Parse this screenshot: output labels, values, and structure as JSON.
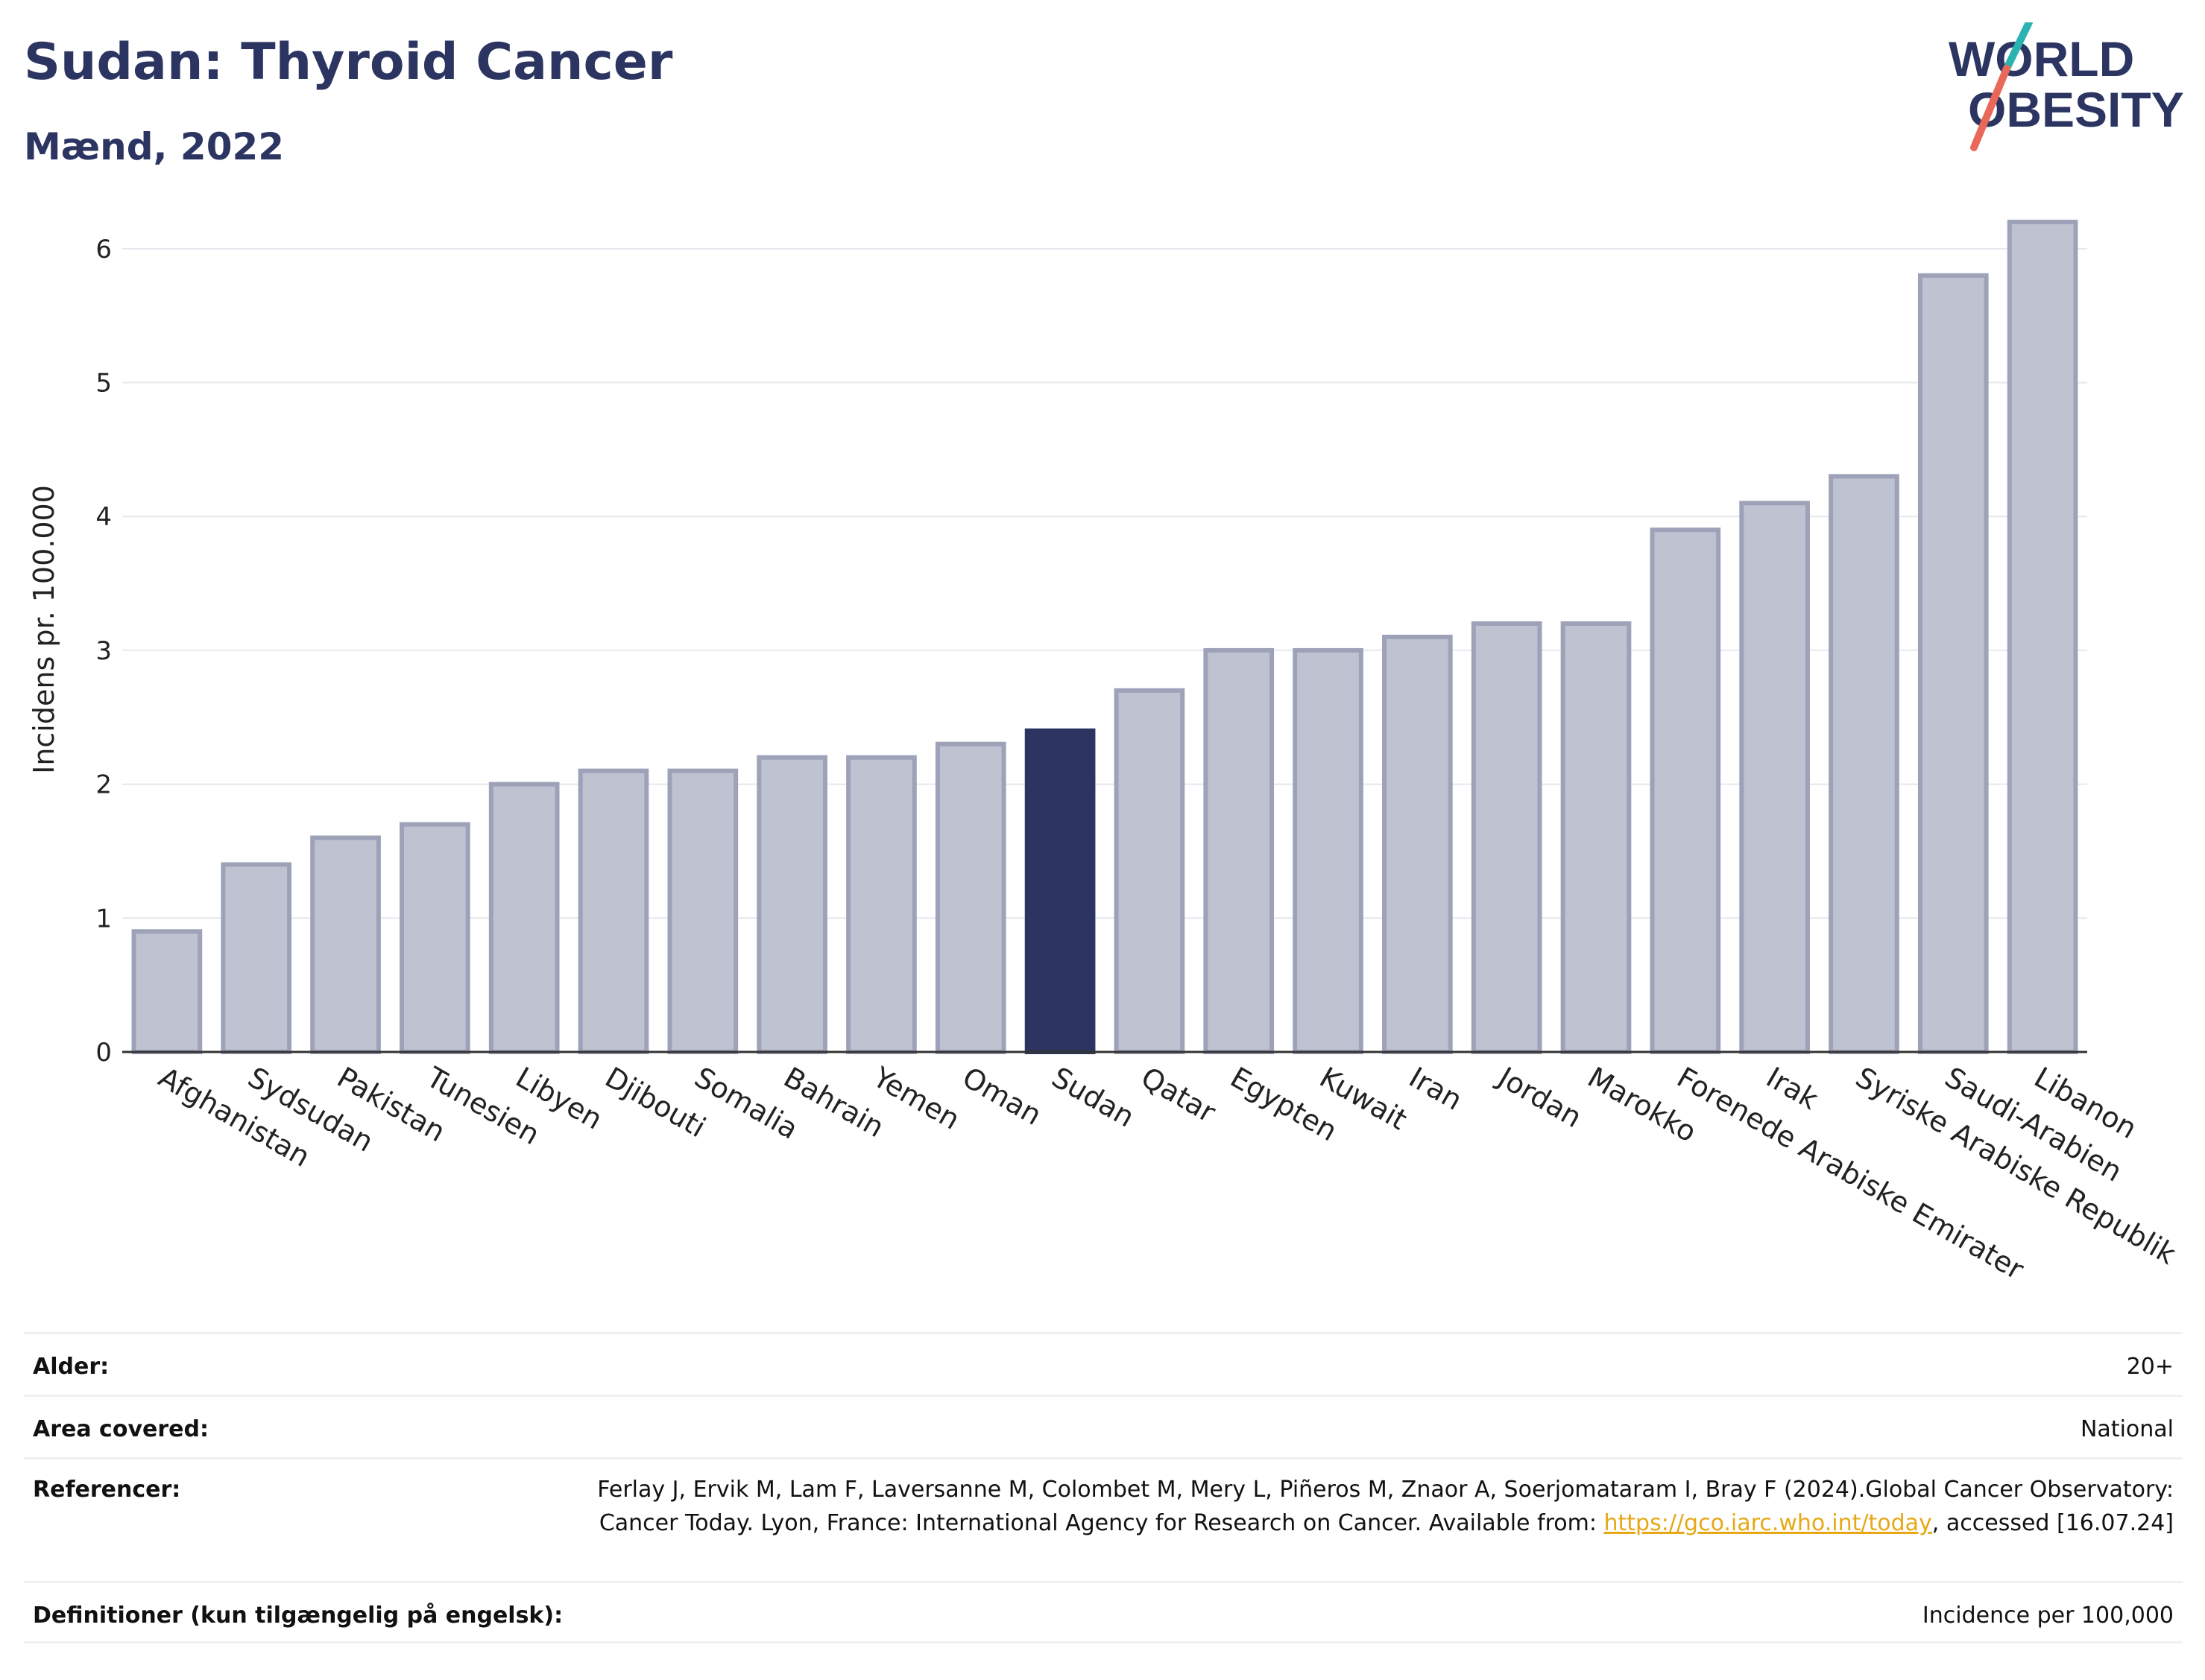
{
  "header": {
    "title": "Sudan: Thyroid Cancer",
    "subtitle": "Mænd, 2022",
    "logo_line1": "WORLD",
    "logo_line2": "OBESITY"
  },
  "chart_data": {
    "type": "bar",
    "ylabel": "Incidens pr. 100.000",
    "ylim": [
      0,
      6.5
    ],
    "yticks": [
      0,
      1,
      2,
      3,
      4,
      5,
      6
    ],
    "grid": true,
    "highlight": "Sudan",
    "colors": {
      "bar": "#bfc2d0",
      "bar_border": "#9da2b8",
      "highlight": "#2c3561",
      "axis": "#333333",
      "grid": "#e6e8ee"
    },
    "categories": [
      "Afghanistan",
      "Sydsudan",
      "Pakistan",
      "Tunesien",
      "Libyen",
      "Djibouti",
      "Somalia",
      "Bahrain",
      "Yemen",
      "Oman",
      "Sudan",
      "Qatar",
      "Egypten",
      "Kuwait",
      "Iran",
      "Jordan",
      "Marokko",
      "Forenede Arabiske Emirater",
      "Irak",
      "Syriske Arabiske Republik",
      "Saudi-Arabien",
      "Libanon"
    ],
    "values": [
      0.9,
      1.4,
      1.6,
      1.7,
      2.0,
      2.1,
      2.1,
      2.2,
      2.2,
      2.3,
      2.4,
      2.7,
      3.0,
      3.0,
      3.1,
      3.2,
      3.2,
      3.9,
      4.1,
      4.3,
      5.8,
      6.2
    ]
  },
  "meta": {
    "age_label": "Alder:",
    "age_value": "20+",
    "area_label": "Area covered:",
    "area_value": "National",
    "ref_label": "Referencer:",
    "ref_text_1": "Ferlay J, Ervik M, Lam F, Laversanne M, Colombet M, Mery L, Piñeros M, Znaor A, Soerjomataram I, Bray F (2024).Global Cancer Observatory: Cancer Today. Lyon, France: International Agency for Research on Cancer. Available from: ",
    "ref_link": "https://gco.iarc.who.int/today",
    "ref_text_2": ", accessed [16.07.24]",
    "def_label": "Definitioner (kun tilgængelig på engelsk):",
    "def_value": "Incidence per 100,000"
  }
}
